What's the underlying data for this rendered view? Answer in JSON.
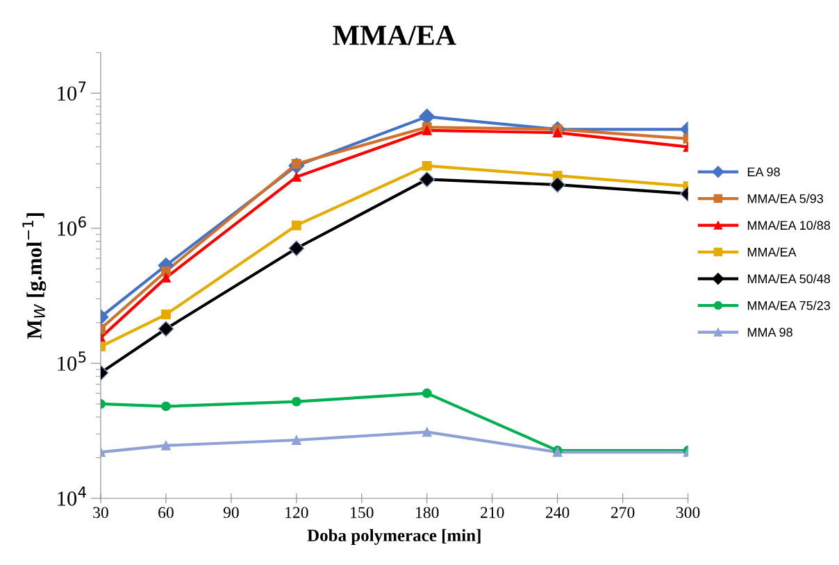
{
  "chart_data": {
    "type": "line",
    "title": "MMA/EA",
    "xlabel": "Doba polymerace [min]",
    "ylabel": "M$_{W}$ [g.mol$^{−1}$]",
    "x": [
      30,
      60,
      120,
      180,
      240,
      300
    ],
    "xlim": [
      30,
      300
    ],
    "xticks": [
      30,
      60,
      90,
      120,
      150,
      180,
      210,
      240,
      270,
      300
    ],
    "ylim": [
      10000,
      20000000
    ],
    "log": "y",
    "yticks": [
      {
        "value": 10000,
        "label": "10$^{4}$"
      },
      {
        "value": 100000,
        "label": "10$^{5}$"
      },
      {
        "value": 1000000,
        "label": "10$^{6}$"
      },
      {
        "value": 10000000,
        "label": "10$^{7}$"
      }
    ],
    "grid": false,
    "legend": "right",
    "line_style": "solid",
    "series": [
      {
        "name": "EA 98",
        "color": "#4472c4",
        "marker": "diamond",
        "values": [
          220000,
          530000,
          2900000,
          6700000,
          5400000,
          5400000
        ]
      },
      {
        "name": "MMA/EA 5/93",
        "color": "#d0712e",
        "marker": "square",
        "values": [
          180000,
          480000,
          3000000,
          5600000,
          5400000,
          4600000
        ]
      },
      {
        "name": "MMA/EA 10/88",
        "color": "#ff0000",
        "marker": "triangle",
        "values": [
          155000,
          430000,
          2400000,
          5300000,
          5100000,
          4000000
        ]
      },
      {
        "name": "MMA/EA",
        "color": "#e5ac00",
        "marker": "square",
        "values": [
          133000,
          230000,
          1050000,
          2900000,
          2450000,
          2050000
        ]
      },
      {
        "name": "MMA/EA 50/48",
        "color": "#000000",
        "marker": "diamond",
        "values": [
          85000,
          180000,
          710000,
          2300000,
          2100000,
          1800000
        ]
      },
      {
        "name": "MMA/EA 75/23",
        "color": "#00b050",
        "marker": "circle",
        "values": [
          50000,
          48000,
          52000,
          60000,
          22600,
          22600
        ]
      },
      {
        "name": "MMA 98",
        "color": "#8ea0d6",
        "marker": "triangle",
        "values": [
          22000,
          24600,
          27000,
          31000,
          22000,
          22000
        ]
      }
    ]
  }
}
